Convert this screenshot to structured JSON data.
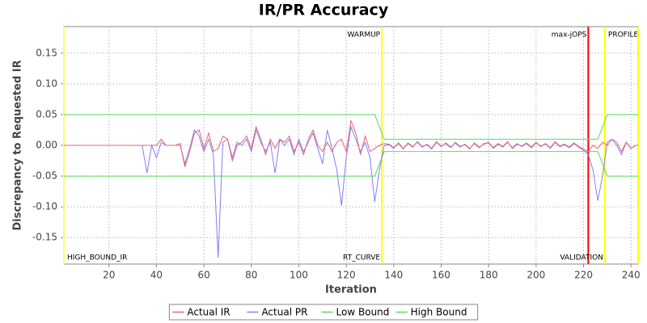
{
  "chart_data": {
    "type": "line",
    "title": "IR/PR Accuracy",
    "xlabel": "Iteration",
    "ylabel": "Discrepancy to Requested IR",
    "x": [
      1,
      34,
      36,
      38,
      40,
      42,
      44,
      46,
      48,
      50,
      52,
      54,
      56,
      58,
      60,
      62,
      64,
      66,
      68,
      70,
      72,
      74,
      76,
      78,
      80,
      82,
      84,
      86,
      88,
      90,
      92,
      94,
      96,
      98,
      100,
      102,
      104,
      106,
      108,
      110,
      112,
      114,
      116,
      118,
      120,
      122,
      124,
      126,
      128,
      130,
      132,
      134,
      136,
      138,
      140,
      142,
      144,
      146,
      148,
      150,
      152,
      154,
      156,
      158,
      160,
      162,
      164,
      166,
      168,
      170,
      172,
      174,
      176,
      178,
      180,
      182,
      184,
      186,
      188,
      190,
      192,
      194,
      196,
      198,
      200,
      202,
      204,
      206,
      208,
      210,
      212,
      214,
      216,
      218,
      220,
      222,
      224,
      226,
      228,
      230,
      232,
      234,
      236,
      238,
      240,
      242,
      243
    ],
    "series": [
      {
        "name": "Actual IR",
        "color": "#e8607a",
        "values": [
          0,
          0,
          0,
          0,
          0,
          0.01,
          0,
          0,
          0,
          0.003,
          -0.035,
          -0.01,
          0.02,
          0.025,
          -0.005,
          0.02,
          -0.01,
          -0.005,
          0.015,
          0.01,
          -0.025,
          0,
          0.005,
          0.015,
          -0.005,
          0.03,
          0.01,
          -0.015,
          0.01,
          -0.005,
          0.01,
          0.005,
          0.015,
          -0.01,
          0.005,
          -0.015,
          0.01,
          0.025,
          0,
          -0.01,
          0.005,
          -0.01,
          0.005,
          0.01,
          -0.01,
          0.04,
          0.02,
          -0.015,
          0.015,
          -0.01,
          -0.005,
          0,
          0.003,
          0.002,
          -0.004,
          0.003,
          -0.006,
          0.004,
          -0.002,
          0.005,
          -0.003,
          0.002,
          -0.005,
          0.006,
          -0.001,
          0.003,
          -0.004,
          0.005,
          -0.002,
          0.001,
          -0.006,
          0.004,
          -0.003,
          0.002,
          0.005,
          -0.004,
          0.003,
          -0.002,
          0.006,
          -0.005,
          0.002,
          -0.001,
          0.004,
          -0.003,
          0.005,
          -0.002,
          0.003,
          -0.004,
          0.006,
          -0.001,
          0.002,
          -0.003,
          0.004,
          -0.002,
          -0.006,
          -0.01,
          0,
          -0.005,
          0.005,
          0,
          0.01,
          0.005,
          -0.01,
          0.005,
          -0.005,
          0,
          0
        ]
      },
      {
        "name": "Actual PR",
        "color": "#8080f0",
        "values": [
          0,
          0,
          -0.045,
          0,
          -0.02,
          0.005,
          0,
          0,
          0,
          0,
          -0.03,
          -0.005,
          0.025,
          0.015,
          -0.01,
          0.01,
          -0.015,
          -0.183,
          0.005,
          0.01,
          -0.02,
          0.005,
          0,
          0.01,
          -0.01,
          0.025,
          0.005,
          -0.01,
          0.005,
          -0.045,
          0.01,
          0,
          0.01,
          -0.015,
          0.01,
          -0.01,
          0.005,
          0.02,
          -0.005,
          -0.03,
          0.025,
          -0.005,
          -0.04,
          -0.098,
          -0.02,
          0.03,
          0.01,
          -0.01,
          0.005,
          -0.02,
          -0.092,
          -0.04,
          0,
          0.001,
          -0.005,
          0.004,
          -0.005,
          0.003,
          -0.003,
          0.006,
          -0.002,
          0.001,
          -0.006,
          0.005,
          -0.002,
          0.004,
          -0.003,
          0.004,
          -0.003,
          0.002,
          -0.005,
          0.003,
          -0.004,
          0.003,
          0.004,
          -0.005,
          0.002,
          -0.003,
          0.005,
          -0.004,
          0.003,
          -0.002,
          0.003,
          -0.004,
          0.004,
          -0.001,
          0.002,
          -0.005,
          0.005,
          -0.002,
          0.001,
          -0.004,
          0.003,
          -0.003,
          -0.008,
          -0.015,
          -0.04,
          -0.09,
          -0.05,
          0.005,
          0.01,
          0,
          -0.015,
          0.005,
          -0.005,
          0,
          0
        ]
      },
      {
        "name": "Low Bound",
        "color": "#55e055",
        "values": [
          -0.05,
          -0.05,
          -0.05,
          -0.05,
          -0.05,
          -0.05,
          -0.05,
          -0.05,
          -0.05,
          -0.05,
          -0.05,
          -0.05,
          -0.05,
          -0.05,
          -0.05,
          -0.05,
          -0.05,
          -0.05,
          -0.05,
          -0.05,
          -0.05,
          -0.05,
          -0.05,
          -0.05,
          -0.05,
          -0.05,
          -0.05,
          -0.05,
          -0.05,
          -0.05,
          -0.05,
          -0.05,
          -0.05,
          -0.05,
          -0.05,
          -0.05,
          -0.05,
          -0.05,
          -0.05,
          -0.05,
          -0.05,
          -0.05,
          -0.05,
          -0.05,
          -0.05,
          -0.05,
          -0.05,
          -0.05,
          -0.05,
          -0.05,
          -0.05,
          -0.03,
          -0.01,
          -0.01,
          -0.01,
          -0.01,
          -0.01,
          -0.01,
          -0.01,
          -0.01,
          -0.01,
          -0.01,
          -0.01,
          -0.01,
          -0.01,
          -0.01,
          -0.01,
          -0.01,
          -0.01,
          -0.01,
          -0.01,
          -0.01,
          -0.01,
          -0.01,
          -0.01,
          -0.01,
          -0.01,
          -0.01,
          -0.01,
          -0.01,
          -0.01,
          -0.01,
          -0.01,
          -0.01,
          -0.01,
          -0.01,
          -0.01,
          -0.01,
          -0.01,
          -0.01,
          -0.01,
          -0.01,
          -0.01,
          -0.01,
          -0.01,
          -0.01,
          -0.01,
          -0.01,
          -0.03,
          -0.05,
          -0.05,
          -0.05,
          -0.05,
          -0.05,
          -0.05,
          -0.05,
          -0.05
        ]
      },
      {
        "name": "High Bound",
        "color": "#55e055",
        "values": [
          0.05,
          0.05,
          0.05,
          0.05,
          0.05,
          0.05,
          0.05,
          0.05,
          0.05,
          0.05,
          0.05,
          0.05,
          0.05,
          0.05,
          0.05,
          0.05,
          0.05,
          0.05,
          0.05,
          0.05,
          0.05,
          0.05,
          0.05,
          0.05,
          0.05,
          0.05,
          0.05,
          0.05,
          0.05,
          0.05,
          0.05,
          0.05,
          0.05,
          0.05,
          0.05,
          0.05,
          0.05,
          0.05,
          0.05,
          0.05,
          0.05,
          0.05,
          0.05,
          0.05,
          0.05,
          0.05,
          0.05,
          0.05,
          0.05,
          0.05,
          0.05,
          0.03,
          0.01,
          0.01,
          0.01,
          0.01,
          0.01,
          0.01,
          0.01,
          0.01,
          0.01,
          0.01,
          0.01,
          0.01,
          0.01,
          0.01,
          0.01,
          0.01,
          0.01,
          0.01,
          0.01,
          0.01,
          0.01,
          0.01,
          0.01,
          0.01,
          0.01,
          0.01,
          0.01,
          0.01,
          0.01,
          0.01,
          0.01,
          0.01,
          0.01,
          0.01,
          0.01,
          0.01,
          0.01,
          0.01,
          0.01,
          0.01,
          0.01,
          0.01,
          0.01,
          0.01,
          0.01,
          0.01,
          0.03,
          0.05,
          0.05,
          0.05,
          0.05,
          0.05,
          0.05,
          0.05,
          0.05
        ]
      }
    ],
    "markers": [
      {
        "x": 1,
        "color": "#ffff66",
        "labels": [
          {
            "text": "HIGH_BOUND_IR",
            "position": "bottom",
            "anchor": "start"
          }
        ]
      },
      {
        "x": 135,
        "color": "#ffff00",
        "labels": [
          {
            "text": "WARMUP",
            "position": "top",
            "anchor": "end"
          },
          {
            "text": "RT_CURVE",
            "position": "bottom",
            "anchor": "end"
          }
        ]
      },
      {
        "x": 222,
        "color": "#ff0000",
        "labels": [
          {
            "text": "max-jOPS",
            "position": "top",
            "anchor": "end"
          }
        ]
      },
      {
        "x": 229,
        "color": "#ffff00",
        "labels": [
          {
            "text": "PROFILE",
            "position": "top",
            "anchor": "start"
          },
          {
            "text": "VALIDATION",
            "position": "bottom",
            "anchor": "end"
          }
        ]
      },
      {
        "x": 243,
        "color": "#ffff00",
        "labels": []
      }
    ],
    "xlim": [
      1,
      243
    ],
    "xticks": [
      20,
      40,
      60,
      80,
      100,
      120,
      140,
      160,
      180,
      200,
      220,
      240
    ],
    "ylim": [
      -0.193,
      0.193
    ],
    "yticks": [
      {
        "value": -0.15,
        "label": "-0.15"
      },
      {
        "value": -0.1,
        "label": "-0.10"
      },
      {
        "value": -0.05,
        "label": "-0.05"
      },
      {
        "value": 0,
        "label": "0.00"
      },
      {
        "value": 0.05,
        "label": "0.05"
      },
      {
        "value": 0.1,
        "label": "0.10"
      },
      {
        "value": 0.15,
        "label": "0.15"
      }
    ],
    "grid": true,
    "legend": "bottom"
  }
}
